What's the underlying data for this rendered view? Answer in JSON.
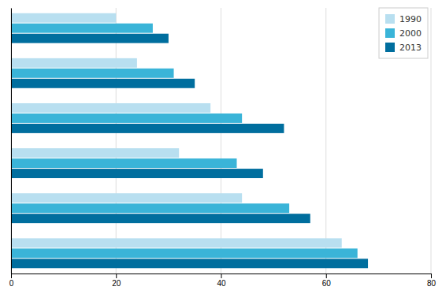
{
  "chart_data": {
    "type": "bar",
    "orientation": "horizontal",
    "categories": [
      null,
      null,
      null,
      null,
      null,
      null
    ],
    "series": [
      {
        "name": "1990",
        "color": "#b8dff0",
        "values": [
          20,
          24,
          38,
          32,
          44,
          63
        ]
      },
      {
        "name": "2000",
        "color": "#3ab4d8",
        "values": [
          27,
          31,
          44,
          43,
          53,
          66
        ]
      },
      {
        "name": "2013",
        "color": "#006e9e",
        "values": [
          30,
          35,
          52,
          48,
          57,
          68
        ]
      }
    ],
    "xlim": [
      0,
      80
    ],
    "xticks": [
      0,
      20,
      40,
      60,
      80
    ],
    "grid": true,
    "legend": "upper right",
    "tick_labels": "x"
  }
}
